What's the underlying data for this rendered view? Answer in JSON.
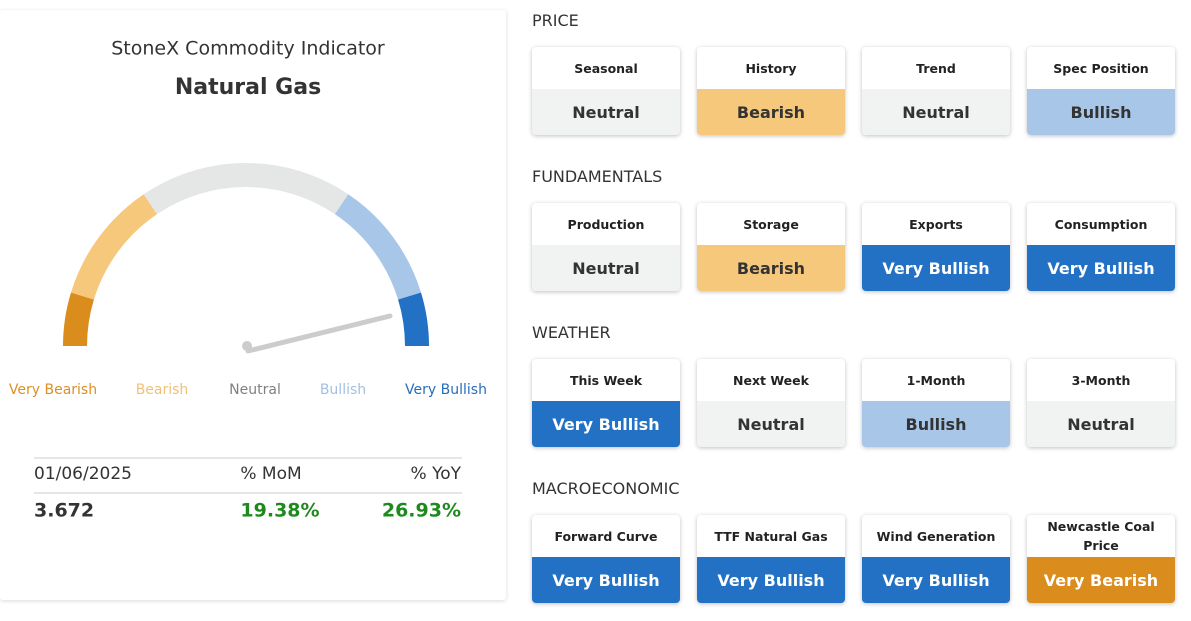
{
  "header": {
    "title": "StoneX Commodity Indicator",
    "subtitle": "Natural Gas"
  },
  "levels": [
    {
      "label": "Very Bearish",
      "color": "#da8c1c",
      "text_color": "#ffffff",
      "label_color": "#d9902a"
    },
    {
      "label": "Bearish",
      "color": "#f6c87b",
      "text_color": "#333333",
      "label_color": "#f0c07a"
    },
    {
      "label": "Neutral",
      "color": "#f1f2f2",
      "text_color": "#333333",
      "label_color": "#808080",
      "arc_color": "#e5e6e6"
    },
    {
      "label": "Bullish",
      "color": "#a8c6e8",
      "text_color": "#333333",
      "label_color": "#a3c0e3"
    },
    {
      "label": "Very Bullish",
      "color": "#2271c4",
      "text_color": "#ffffff",
      "label_color": "#2a6db8"
    }
  ],
  "stats": {
    "header": [
      "01/06/2025",
      "% MoM",
      "% YoY"
    ],
    "values": [
      "3.672",
      "19.38%",
      "26.93%"
    ],
    "positive_color": "#1e8a1e"
  },
  "sections": [
    {
      "title": "PRICE",
      "cards": [
        {
          "label": "Seasonal",
          "status": "Neutral"
        },
        {
          "label": "History",
          "status": "Bearish"
        },
        {
          "label": "Trend",
          "status": "Neutral"
        },
        {
          "label": "Spec Position",
          "status": "Bullish"
        }
      ]
    },
    {
      "title": "FUNDAMENTALS",
      "cards": [
        {
          "label": "Production",
          "status": "Neutral"
        },
        {
          "label": "Storage",
          "status": "Bearish"
        },
        {
          "label": "Exports",
          "status": "Very Bullish"
        },
        {
          "label": "Consumption",
          "status": "Very Bullish"
        }
      ]
    },
    {
      "title": "WEATHER",
      "cards": [
        {
          "label": "This Week",
          "status": "Very Bullish"
        },
        {
          "label": "Next Week",
          "status": "Neutral"
        },
        {
          "label": "1-Month",
          "status": "Bullish"
        },
        {
          "label": "3-Month",
          "status": "Neutral"
        }
      ]
    },
    {
      "title": "MACROECONOMIC",
      "cards": [
        {
          "label": "Forward Curve",
          "status": "Very Bullish"
        },
        {
          "label": "TTF Natural Gas",
          "status": "Very Bullish"
        },
        {
          "label": "Wind Generation",
          "status": "Very Bullish"
        },
        {
          "label": "Newcastle Coal Price",
          "status": "Very Bearish"
        }
      ]
    }
  ]
}
